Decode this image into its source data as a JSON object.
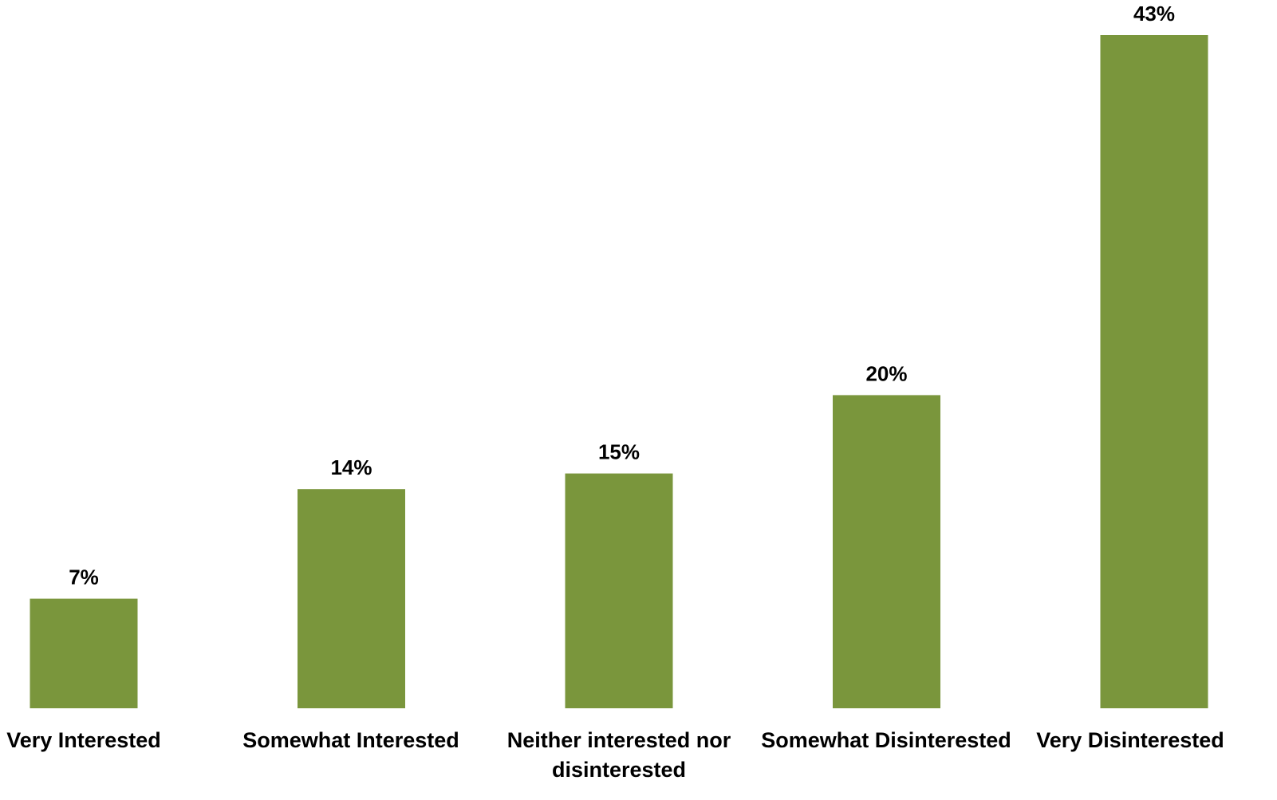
{
  "chart_data": {
    "type": "bar",
    "categories": [
      "Very Interested",
      "Somewhat Interested",
      "Neither interested nor disinterested",
      "Somewhat Disinterested",
      "Very Disinterested"
    ],
    "values": [
      7,
      14,
      15,
      20,
      43
    ],
    "data_labels": [
      "7%",
      "14%",
      "15%",
      "20%",
      "43%"
    ],
    "unit": "%",
    "title": "",
    "xlabel": "",
    "ylabel": "",
    "ylim": [
      0,
      43
    ],
    "grid": false,
    "legend": "none",
    "colors": {
      "bar": "#7A963C",
      "text": "#000000",
      "background": "#FFFFFF"
    }
  }
}
